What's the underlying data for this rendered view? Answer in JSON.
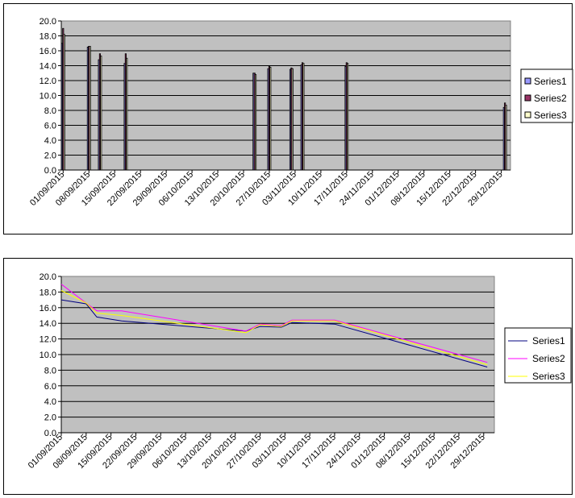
{
  "charts": [
    {
      "type": "bar",
      "ylim": [
        0,
        20
      ],
      "yticks": [
        "0.0",
        "2.0",
        "4.0",
        "6.0",
        "8.0",
        "10.0",
        "12.0",
        "14.0",
        "16.0",
        "18.0",
        "20.0"
      ],
      "xlabels": [
        "01/09/2015",
        "08/09/2015",
        "15/09/2015",
        "22/09/2015",
        "29/09/2015",
        "06/10/2015",
        "13/10/2015",
        "20/10/2015",
        "27/10/2015",
        "03/11/2015",
        "10/11/2015",
        "17/11/2015",
        "24/11/2015",
        "01/12/2015",
        "08/12/2015",
        "15/12/2015",
        "22/12/2015",
        "29/12/2015"
      ],
      "grid": true,
      "legend_position": "right",
      "series": [
        {
          "name": "Series1",
          "color": "#9999ff"
        },
        {
          "name": "Series2",
          "color": "#993366"
        },
        {
          "name": "Series3",
          "color": "#ffffcc"
        }
      ]
    },
    {
      "type": "line",
      "ylim": [
        0,
        20
      ],
      "yticks": [
        "0.0",
        "2.0",
        "4.0",
        "6.0",
        "8.0",
        "10.0",
        "12.0",
        "14.0",
        "16.0",
        "18.0",
        "20.0"
      ],
      "xlabels": [
        "01/09/2015",
        "08/09/2015",
        "15/09/2015",
        "22/09/2015",
        "29/09/2015",
        "06/10/2015",
        "13/10/2015",
        "20/10/2015",
        "27/10/2015",
        "03/11/2015",
        "10/11/2015",
        "17/11/2015",
        "24/11/2015",
        "01/12/2015",
        "08/12/2015",
        "15/12/2015",
        "22/12/2015",
        "29/12/2015"
      ],
      "grid": true,
      "legend_position": "right",
      "series": [
        {
          "name": "Series1",
          "color": "#000080"
        },
        {
          "name": "Series2",
          "color": "#ff00ff"
        },
        {
          "name": "Series3",
          "color": "#ffff00"
        }
      ]
    }
  ],
  "chart_data": [
    {
      "type": "bar",
      "x_start": "2015-09-01",
      "x_end": "2015-12-31",
      "ylim": [
        0,
        20
      ],
      "series": [
        {
          "name": "Series1",
          "x": [
            "2015-09-01",
            "2015-09-08",
            "2015-09-11",
            "2015-09-18",
            "2015-10-23",
            "2015-10-27",
            "2015-11-02",
            "2015-11-05",
            "2015-11-17",
            "2015-12-30"
          ],
          "values": [
            17.0,
            16.5,
            14.8,
            14.3,
            13.0,
            13.6,
            13.5,
            14.1,
            13.9,
            8.4
          ]
        },
        {
          "name": "Series2",
          "x": [
            "2015-09-01",
            "2015-09-08",
            "2015-09-11",
            "2015-09-18",
            "2015-10-23",
            "2015-10-27",
            "2015-11-02",
            "2015-11-05",
            "2015-11-17",
            "2015-12-30"
          ],
          "values": [
            19.0,
            16.6,
            15.6,
            15.6,
            13.0,
            13.9,
            13.7,
            14.4,
            14.4,
            9.0
          ]
        },
        {
          "name": "Series3",
          "x": [
            "2015-09-01",
            "2015-09-08",
            "2015-09-11",
            "2015-09-18",
            "2015-10-23",
            "2015-10-27",
            "2015-11-02",
            "2015-11-05",
            "2015-11-17",
            "2015-12-30"
          ],
          "values": [
            18.2,
            16.6,
            15.3,
            15.0,
            12.8,
            13.8,
            13.6,
            14.3,
            14.3,
            8.7
          ]
        }
      ]
    },
    {
      "type": "line",
      "x_start": "2015-09-01",
      "x_end": "2015-12-31",
      "ylim": [
        0,
        20
      ],
      "series": [
        {
          "name": "Series1",
          "x": [
            "2015-09-01",
            "2015-09-08",
            "2015-09-11",
            "2015-09-18",
            "2015-10-23",
            "2015-10-27",
            "2015-11-02",
            "2015-11-05",
            "2015-11-17",
            "2015-12-30"
          ],
          "values": [
            17.0,
            16.5,
            14.8,
            14.3,
            13.0,
            13.6,
            13.5,
            14.1,
            13.9,
            8.4
          ]
        },
        {
          "name": "Series2",
          "x": [
            "2015-09-01",
            "2015-09-08",
            "2015-09-11",
            "2015-09-18",
            "2015-10-23",
            "2015-10-27",
            "2015-11-02",
            "2015-11-05",
            "2015-11-17",
            "2015-12-30"
          ],
          "values": [
            19.0,
            16.6,
            15.6,
            15.6,
            13.0,
            13.9,
            13.7,
            14.4,
            14.4,
            9.0
          ]
        },
        {
          "name": "Series3",
          "x": [
            "2015-09-01",
            "2015-09-08",
            "2015-09-11",
            "2015-09-18",
            "2015-10-23",
            "2015-10-27",
            "2015-11-02",
            "2015-11-05",
            "2015-11-17",
            "2015-12-30"
          ],
          "values": [
            18.2,
            16.6,
            15.3,
            15.0,
            12.8,
            13.8,
            13.6,
            14.3,
            14.3,
            8.7
          ]
        }
      ]
    }
  ]
}
